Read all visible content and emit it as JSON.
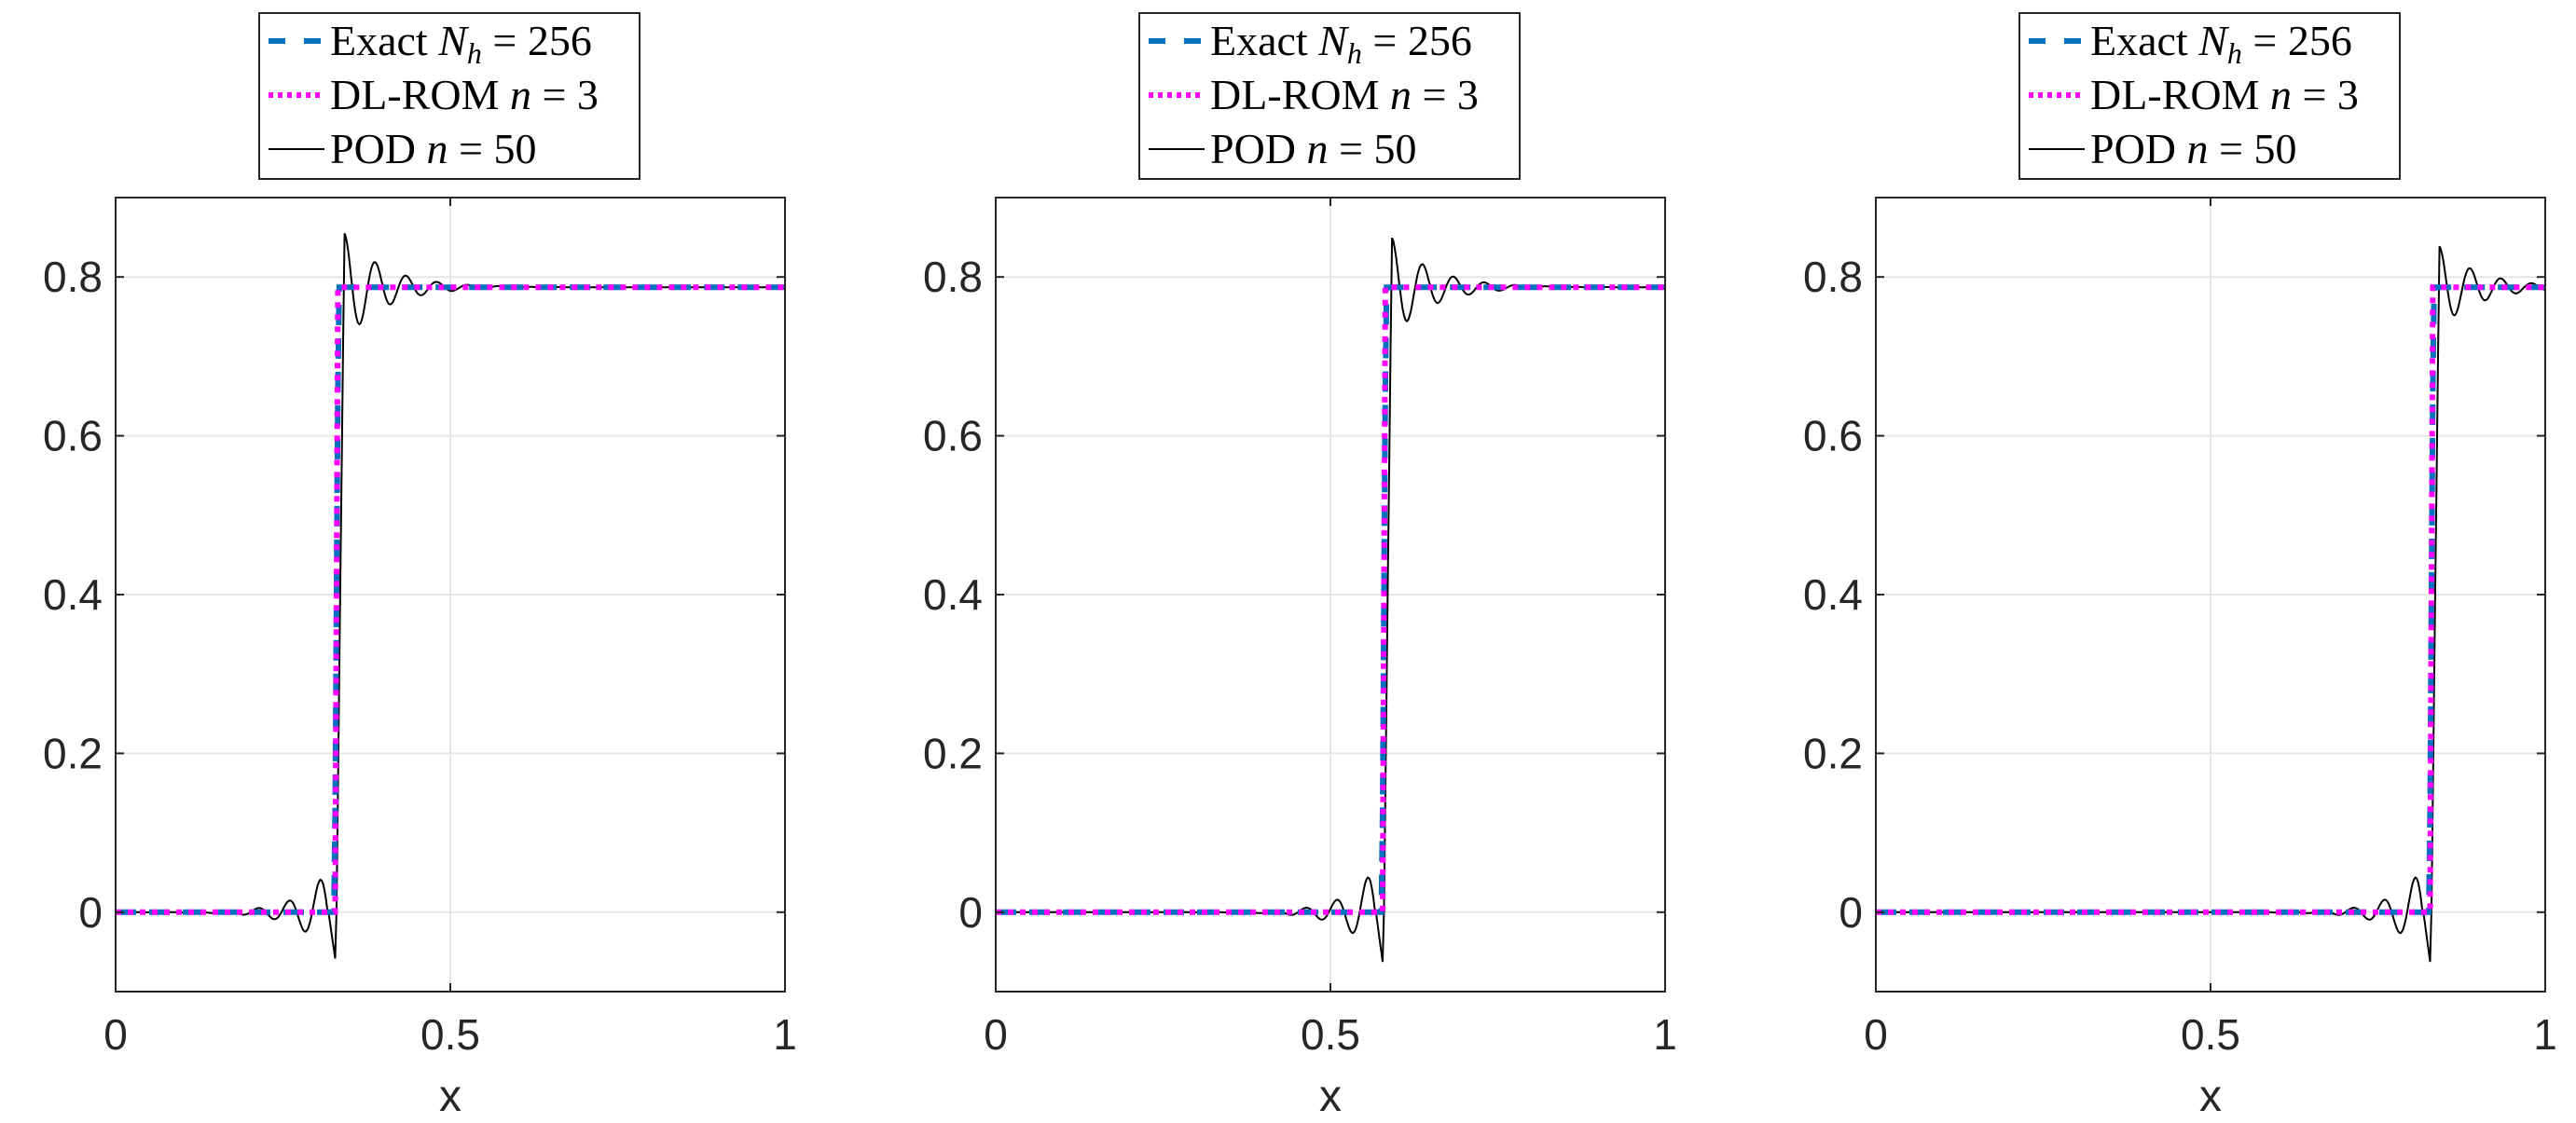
{
  "chart_data": [
    {
      "type": "line",
      "xlabel": "x",
      "ylabel": "",
      "xlim": [
        0,
        1
      ],
      "ylim": [
        -0.1,
        0.9
      ],
      "xticks": [
        0,
        0.5,
        1
      ],
      "xtick_labels": [
        "0",
        "0.5",
        "1"
      ],
      "yticks": [
        0,
        0.2,
        0.4,
        0.6,
        0.8
      ],
      "ytick_labels": [
        "0",
        "0.2",
        "0.4",
        "0.6",
        "0.8"
      ],
      "grid": true,
      "legend_position": "top-center-outside",
      "shock_location": 0.33,
      "plateau": 0.787,
      "pod_overshoot": 0.87,
      "pod_undershoot": -0.07,
      "series": [
        {
          "name": "Exact $N_h = 256$",
          "color": "#0072BD",
          "style": "dashed"
        },
        {
          "name": "DL-ROM $n = 3$",
          "color": "#FF00FF",
          "style": "dotted"
        },
        {
          "name": "POD $n = 50$",
          "color": "#000000",
          "style": "solid"
        }
      ]
    },
    {
      "type": "line",
      "xlabel": "x",
      "ylabel": "",
      "xlim": [
        0,
        1
      ],
      "ylim": [
        -0.1,
        0.9
      ],
      "xticks": [
        0,
        0.5,
        1
      ],
      "xtick_labels": [
        "0",
        "0.5",
        "1"
      ],
      "yticks": [
        0,
        0.2,
        0.4,
        0.6,
        0.8
      ],
      "ytick_labels": [
        "0",
        "0.2",
        "0.4",
        "0.6",
        "0.8"
      ],
      "grid": true,
      "legend_position": "top-center-outside",
      "shock_location": 0.58,
      "plateau": 0.787,
      "pod_overshoot": 0.863,
      "pod_undershoot": -0.075,
      "series": [
        {
          "name": "Exact $N_h = 256$",
          "color": "#0072BD",
          "style": "dashed"
        },
        {
          "name": "DL-ROM $n = 3$",
          "color": "#FF00FF",
          "style": "dotted"
        },
        {
          "name": "POD $n = 50$",
          "color": "#000000",
          "style": "solid"
        }
      ]
    },
    {
      "type": "line",
      "xlabel": "x",
      "ylabel": "",
      "xlim": [
        0,
        1
      ],
      "ylim": [
        -0.1,
        0.9
      ],
      "xticks": [
        0,
        0.5,
        1
      ],
      "xtick_labels": [
        "0",
        "0.5",
        "1"
      ],
      "yticks": [
        0,
        0.2,
        0.4,
        0.6,
        0.8
      ],
      "ytick_labels": [
        "0",
        "0.2",
        "0.4",
        "0.6",
        "0.8"
      ],
      "grid": true,
      "legend_position": "top-center-outside",
      "shock_location": 0.83,
      "plateau": 0.787,
      "pod_overshoot": 0.85,
      "pod_undershoot": -0.075,
      "series": [
        {
          "name": "Exact $N_h = 256$",
          "color": "#0072BD",
          "style": "dashed"
        },
        {
          "name": "DL-ROM $n = 3$",
          "color": "#FF00FF",
          "style": "dotted"
        },
        {
          "name": "POD $n = 50$",
          "color": "#000000",
          "style": "solid"
        }
      ]
    }
  ]
}
